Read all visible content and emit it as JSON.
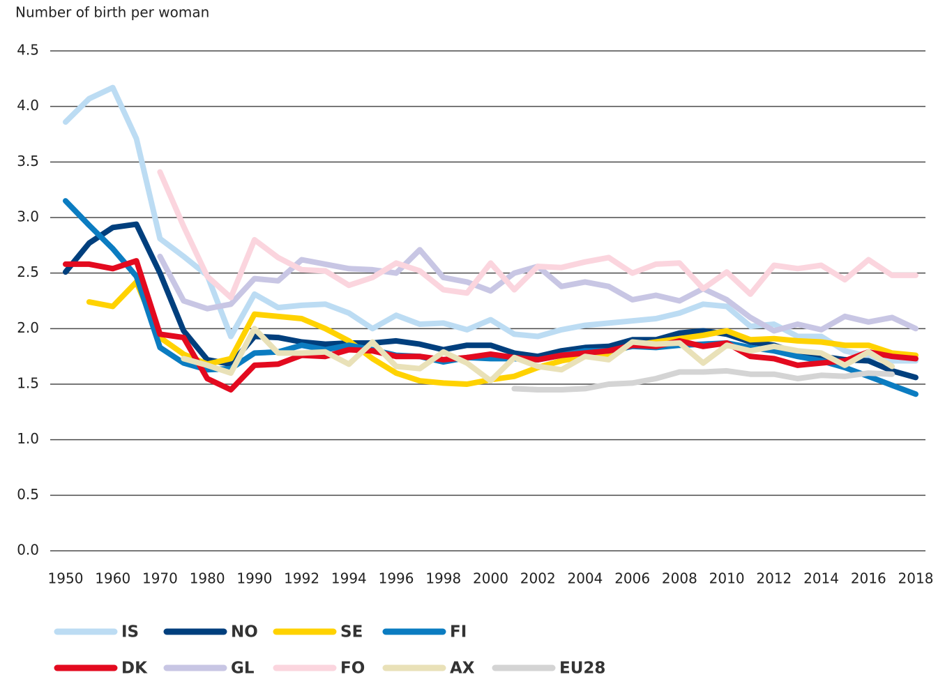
{
  "chart_data": {
    "type": "line",
    "title": "Number of birth per woman",
    "categories": [
      "1950",
      null,
      "1960",
      null,
      "1970",
      null,
      "1980",
      null,
      "1990",
      null,
      "1992",
      null,
      "1994",
      null,
      "1996",
      null,
      "1998",
      null,
      "2000",
      null,
      "2002",
      null,
      "2004",
      null,
      "2006",
      null,
      "2008",
      null,
      "2010",
      null,
      "2012",
      null,
      "2014",
      null,
      "2016",
      null,
      "2018"
    ],
    "ylim": [
      0,
      4.5
    ],
    "yticks": [
      {
        "value": 0,
        "label": "0.0"
      },
      0.5,
      {
        "value": 1,
        "label": "1.0"
      },
      1.5,
      {
        "value": 2,
        "label": "2.0"
      },
      2.5,
      {
        "value": 3,
        "label": "3.0"
      },
      3.5,
      {
        "value": 4,
        "label": "4.0"
      },
      4.5
    ],
    "grid": true,
    "series": [
      {
        "name": "IS",
        "color": "#bcdcf3",
        "values": [
          3.86,
          4.07,
          4.17,
          3.71,
          2.81,
          2.65,
          2.48,
          1.93,
          2.31,
          2.19,
          2.21,
          2.22,
          2.14,
          2.0,
          2.12,
          2.04,
          2.05,
          1.99,
          2.08,
          1.95,
          1.93,
          1.99,
          2.03,
          2.05,
          2.07,
          2.09,
          2.14,
          2.22,
          2.2,
          2.02,
          2.04,
          1.93,
          1.93,
          1.8,
          1.75,
          1.71,
          1.71
        ]
      },
      {
        "name": "NO",
        "color": "#003f7d",
        "values": [
          2.51,
          2.77,
          2.91,
          2.94,
          2.5,
          1.98,
          1.72,
          1.68,
          1.93,
          1.92,
          1.88,
          1.86,
          1.87,
          1.87,
          1.89,
          1.86,
          1.81,
          1.85,
          1.85,
          1.78,
          1.75,
          1.8,
          1.83,
          1.84,
          1.9,
          1.9,
          1.96,
          1.98,
          1.95,
          1.88,
          1.85,
          1.78,
          1.75,
          1.72,
          1.71,
          1.62,
          1.56
        ]
      },
      {
        "name": "SE",
        "color": "#ffd200",
        "values": [
          null,
          2.24,
          2.2,
          2.42,
          1.92,
          1.77,
          1.68,
          1.73,
          2.13,
          2.11,
          2.09,
          2.0,
          1.89,
          1.73,
          1.6,
          1.53,
          1.51,
          1.5,
          1.54,
          1.57,
          1.65,
          1.71,
          1.75,
          1.77,
          1.85,
          1.88,
          1.91,
          1.94,
          1.98,
          1.9,
          1.91,
          1.89,
          1.88,
          1.85,
          1.85,
          1.78,
          1.76
        ]
      },
      {
        "name": "FI",
        "color": "#0b7cc1",
        "values": [
          3.15,
          2.93,
          2.72,
          2.47,
          1.83,
          1.69,
          1.63,
          1.64,
          1.78,
          1.79,
          1.85,
          1.81,
          1.85,
          1.81,
          1.76,
          1.75,
          1.7,
          1.74,
          1.73,
          1.73,
          1.72,
          1.76,
          1.8,
          1.8,
          1.84,
          1.83,
          1.85,
          1.86,
          1.87,
          1.83,
          1.8,
          1.75,
          1.71,
          1.65,
          1.57,
          1.49,
          1.41
        ]
      },
      {
        "name": "DK",
        "color": "#e30a1f",
        "values": [
          2.58,
          2.58,
          2.54,
          2.61,
          1.95,
          1.92,
          1.55,
          1.45,
          1.67,
          1.68,
          1.76,
          1.75,
          1.81,
          1.8,
          1.75,
          1.75,
          1.72,
          1.74,
          1.77,
          1.74,
          1.72,
          1.76,
          1.78,
          1.8,
          1.85,
          1.84,
          1.89,
          1.84,
          1.87,
          1.75,
          1.73,
          1.67,
          1.69,
          1.71,
          1.79,
          1.75,
          1.73
        ]
      },
      {
        "name": "GL",
        "color": "#c8c6e4",
        "values": [
          null,
          null,
          null,
          null,
          2.65,
          2.25,
          2.18,
          2.22,
          2.45,
          2.43,
          2.62,
          2.58,
          2.54,
          2.53,
          2.5,
          2.71,
          2.46,
          2.42,
          2.34,
          2.5,
          2.56,
          2.38,
          2.42,
          2.38,
          2.26,
          2.3,
          2.25,
          2.36,
          2.26,
          2.1,
          1.98,
          2.04,
          1.99,
          2.11,
          2.06,
          2.1,
          2.0
        ]
      },
      {
        "name": "FO",
        "color": "#fbd5de",
        "values": [
          null,
          null,
          null,
          null,
          3.41,
          2.92,
          2.47,
          2.28,
          2.8,
          2.64,
          2.53,
          2.52,
          2.39,
          2.46,
          2.59,
          2.52,
          2.35,
          2.32,
          2.59,
          2.35,
          2.56,
          2.55,
          2.6,
          2.64,
          2.5,
          2.58,
          2.59,
          2.36,
          2.51,
          2.31,
          2.57,
          2.54,
          2.57,
          2.44,
          2.62,
          2.48,
          2.48
        ]
      },
      {
        "name": "AX",
        "color": "#e9e1b8",
        "values": [
          null,
          null,
          null,
          null,
          null,
          1.73,
          1.67,
          1.6,
          2.0,
          1.78,
          1.78,
          1.79,
          1.68,
          1.88,
          1.66,
          1.64,
          1.79,
          1.69,
          1.53,
          1.74,
          1.66,
          1.63,
          1.75,
          1.72,
          1.88,
          1.86,
          1.87,
          1.69,
          1.85,
          1.8,
          1.84,
          1.8,
          1.78,
          1.67,
          1.79,
          1.66,
          null
        ]
      },
      {
        "name": "EU28",
        "color": "#d4d4d4",
        "values": [
          null,
          null,
          null,
          null,
          null,
          null,
          null,
          null,
          null,
          null,
          null,
          null,
          null,
          null,
          null,
          null,
          null,
          null,
          null,
          1.46,
          1.45,
          1.45,
          1.46,
          1.5,
          1.51,
          1.55,
          1.61,
          1.61,
          1.62,
          1.59,
          1.59,
          1.55,
          1.58,
          1.57,
          1.6,
          1.59,
          null
        ]
      }
    ]
  }
}
